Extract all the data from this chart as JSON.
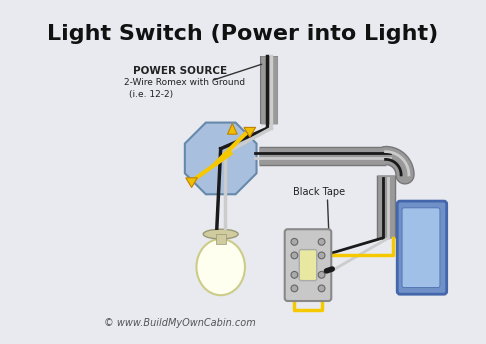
{
  "title": "Light Switch (Power into Light)",
  "label_ps1": "POWER SOURCE",
  "label_ps2": "2-Wire Romex with Ground",
  "label_ps3": "(i.e. 12-2)",
  "label_bt": "Black Tape",
  "copyright": "© www.BuildMyOwnCabin.com",
  "bg_color": "#e8eaf0",
  "border_color": "#aaaaaa",
  "title_color": "#111111",
  "wire_black": "#1a1a1a",
  "wire_white": "#cccccc",
  "wire_yellow": "#f5c800",
  "conduit_color": "#999999",
  "conduit_edge": "#777777",
  "jbox_fill": "#a8c0de",
  "jbox_edge": "#6688aa",
  "bulb_fill": "#fffff0",
  "bulb_edge": "#cccc88",
  "bulb_base": "#d0cca0",
  "switch_fill": "#c8c8c8",
  "switch_edge": "#888888",
  "ebox_fill": "#7090c8",
  "ebox_edge": "#4466aa",
  "toggle_fill": "#e8e8a0",
  "wire_lw": 2.0,
  "conduit_lw": 12
}
